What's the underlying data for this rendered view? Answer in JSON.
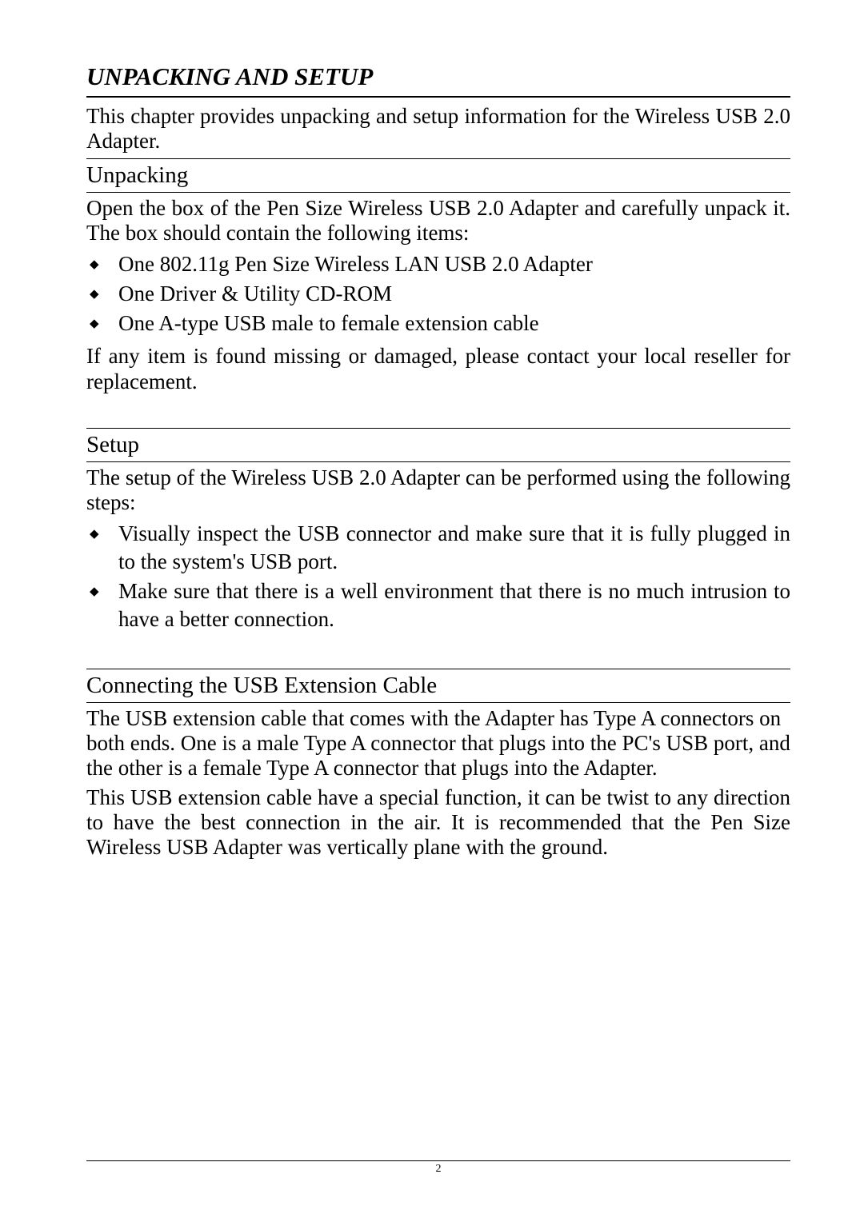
{
  "page": {
    "title": "UNPACKING AND SETUP",
    "intro": "This chapter provides unpacking and setup information for the Wireless USB 2.0 Adapter.",
    "sections": {
      "unpacking": {
        "heading": "Unpacking",
        "para1": "Open the box of the Pen Size Wireless USB 2.0 Adapter and carefully unpack it. The box should contain the following items:",
        "items": [
          "One 802.11g Pen Size Wireless LAN USB 2.0 Adapter",
          "One Driver & Utility CD-ROM",
          "One A-type USB male to female extension cable"
        ],
        "para2": "If any item is found missing or damaged, please contact your local reseller for replacement."
      },
      "setup": {
        "heading": "Setup",
        "para1": "The setup of the Wireless USB 2.0 Adapter can be performed using the following steps:",
        "items": [
          "Visually inspect the USB connector and make sure that it is fully plugged in to the system's USB port.",
          "Make sure that there is a well environment that there is no much intrusion to have a better connection."
        ]
      },
      "cable": {
        "heading": "Connecting the USB Extension Cable",
        "para1": "The USB extension cable that comes with the Adapter has Type A connectors on both ends. One is a male Type A connector that plugs into the PC's USB port, and the other is a female Type A connector that plugs into the Adapter.",
        "para2": "This USB extension cable have a special function, it can be twist to any direction to have the best connection in the air. It is recommended that the Pen Size Wireless USB Adapter was vertically plane with the ground."
      }
    },
    "pageNumber": "2"
  },
  "style": {
    "background_color": "#ffffff",
    "text_color": "#000000",
    "font_family": "Times New Roman",
    "title_fontsize": 31,
    "section_heading_fontsize": 29,
    "body_fontsize": 27,
    "page_num_fontsize": 14,
    "bullet_glyph": "◆",
    "rule_color": "#000000"
  }
}
